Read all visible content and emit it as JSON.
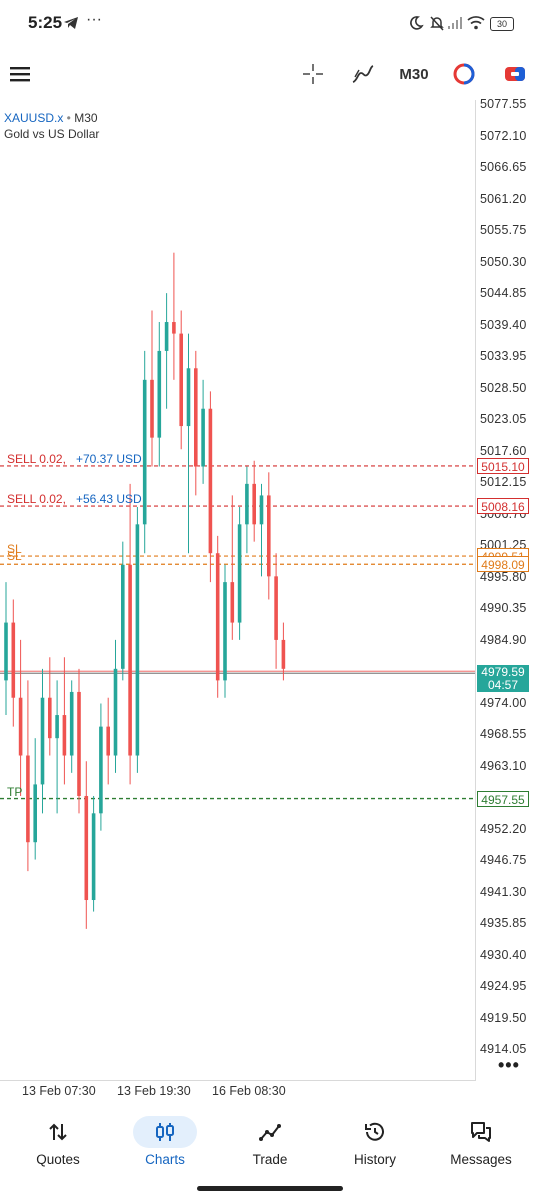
{
  "status_bar": {
    "time": "5:25",
    "battery": "30"
  },
  "toolbar": {
    "timeframe": "M30"
  },
  "chart": {
    "symbol": "XAUUSD.x",
    "timeframe": "M30",
    "description": "Gold vs US Dollar",
    "price_labels": [
      "5077.55",
      "5072.10",
      "5066.65",
      "5061.20",
      "5055.75",
      "5050.30",
      "5044.85",
      "5039.40",
      "5033.95",
      "5028.50",
      "5023.05",
      "5017.60",
      "5012.15",
      "5006.70",
      "5001.25",
      "4995.80",
      "4990.35",
      "4984.90",
      "4974.00",
      "4968.55",
      "4963.10",
      "4952.20",
      "4946.75",
      "4941.30",
      "4935.85",
      "4930.40",
      "4924.95",
      "4919.50",
      "4914.05"
    ],
    "time_labels": [
      "13 Feb 07:30",
      "13 Feb 19:30",
      "16 Feb 08:30"
    ],
    "orders": [
      {
        "side": "SELL 0.02,",
        "profit": "+70.37 USD",
        "price": "5015.10"
      },
      {
        "side": "SELL 0.02,",
        "profit": "+56.43 USD",
        "price": "5008.16"
      }
    ],
    "sl_lines": [
      {
        "label": "SL",
        "price": "4999.51"
      },
      {
        "label": "SL",
        "price": "4998.09"
      }
    ],
    "tp_line": {
      "label": "TP",
      "price": "4957.55"
    },
    "current_price": {
      "price": "4979.59",
      "countdown": "04:57"
    },
    "colors": {
      "bull": "#26a69a",
      "bear": "#ef5350",
      "sell_line": "#d32f2f",
      "sl_line": "#e07b1a",
      "tp_line": "#2e7d32",
      "accent": "#1565c0"
    }
  },
  "chart_data": {
    "type": "candlestick",
    "symbol": "XAUUSD.x",
    "timeframe": "M30",
    "ylim": [
      4911.8,
      5079.3
    ],
    "candles": [
      {
        "o": 4978,
        "h": 4995,
        "l": 4972,
        "c": 4988
      },
      {
        "o": 4988,
        "h": 4992,
        "l": 4970,
        "c": 4975
      },
      {
        "o": 4975,
        "h": 4985,
        "l": 4958,
        "c": 4965
      },
      {
        "o": 4965,
        "h": 4978,
        "l": 4945,
        "c": 4950
      },
      {
        "o": 4950,
        "h": 4968,
        "l": 4947,
        "c": 4960
      },
      {
        "o": 4960,
        "h": 4980,
        "l": 4955,
        "c": 4975
      },
      {
        "o": 4975,
        "h": 4982,
        "l": 4965,
        "c": 4968
      },
      {
        "o": 4968,
        "h": 4978,
        "l": 4955,
        "c": 4972
      },
      {
        "o": 4972,
        "h": 4982,
        "l": 4960,
        "c": 4965
      },
      {
        "o": 4965,
        "h": 4978,
        "l": 4962,
        "c": 4976
      },
      {
        "o": 4976,
        "h": 4980,
        "l": 4955,
        "c": 4958
      },
      {
        "o": 4958,
        "h": 4964,
        "l": 4935,
        "c": 4940
      },
      {
        "o": 4940,
        "h": 4958,
        "l": 4938,
        "c": 4955
      },
      {
        "o": 4955,
        "h": 4974,
        "l": 4952,
        "c": 4970
      },
      {
        "o": 4970,
        "h": 4975,
        "l": 4960,
        "c": 4965
      },
      {
        "o": 4965,
        "h": 4985,
        "l": 4962,
        "c": 4980
      },
      {
        "o": 4980,
        "h": 5002,
        "l": 4978,
        "c": 4998
      },
      {
        "o": 4998,
        "h": 5012,
        "l": 4960,
        "c": 4965
      },
      {
        "o": 4965,
        "h": 5008,
        "l": 4962,
        "c": 5005
      },
      {
        "o": 5005,
        "h": 5035,
        "l": 5000,
        "c": 5030
      },
      {
        "o": 5030,
        "h": 5042,
        "l": 5015,
        "c": 5020
      },
      {
        "o": 5020,
        "h": 5040,
        "l": 5015,
        "c": 5035
      },
      {
        "o": 5035,
        "h": 5045,
        "l": 5025,
        "c": 5040
      },
      {
        "o": 5040,
        "h": 5052,
        "l": 5030,
        "c": 5038
      },
      {
        "o": 5038,
        "h": 5042,
        "l": 5018,
        "c": 5022
      },
      {
        "o": 5022,
        "h": 5038,
        "l": 5000,
        "c": 5032
      },
      {
        "o": 5032,
        "h": 5035,
        "l": 5010,
        "c": 5015
      },
      {
        "o": 5015,
        "h": 5030,
        "l": 5012,
        "c": 5025
      },
      {
        "o": 5025,
        "h": 5028,
        "l": 4995,
        "c": 5000
      },
      {
        "o": 5000,
        "h": 5003,
        "l": 4975,
        "c": 4978
      },
      {
        "o": 4978,
        "h": 4998,
        "l": 4975,
        "c": 4995
      },
      {
        "o": 4995,
        "h": 5010,
        "l": 4985,
        "c": 4988
      },
      {
        "o": 4988,
        "h": 5008,
        "l": 4985,
        "c": 5005
      },
      {
        "o": 5005,
        "h": 5015,
        "l": 5000,
        "c": 5012
      },
      {
        "o": 5012,
        "h": 5016,
        "l": 5002,
        "c": 5005
      },
      {
        "o": 5005,
        "h": 5012,
        "l": 4996,
        "c": 5010
      },
      {
        "o": 5010,
        "h": 5014,
        "l": 4992,
        "c": 4996
      },
      {
        "o": 4996,
        "h": 5000,
        "l": 4980,
        "c": 4985
      },
      {
        "o": 4985,
        "h": 4988,
        "l": 4978,
        "c": 4980
      }
    ]
  },
  "bottom_nav": {
    "items": [
      {
        "label": "Quotes"
      },
      {
        "label": "Charts"
      },
      {
        "label": "Trade"
      },
      {
        "label": "History"
      },
      {
        "label": "Messages"
      }
    ]
  }
}
